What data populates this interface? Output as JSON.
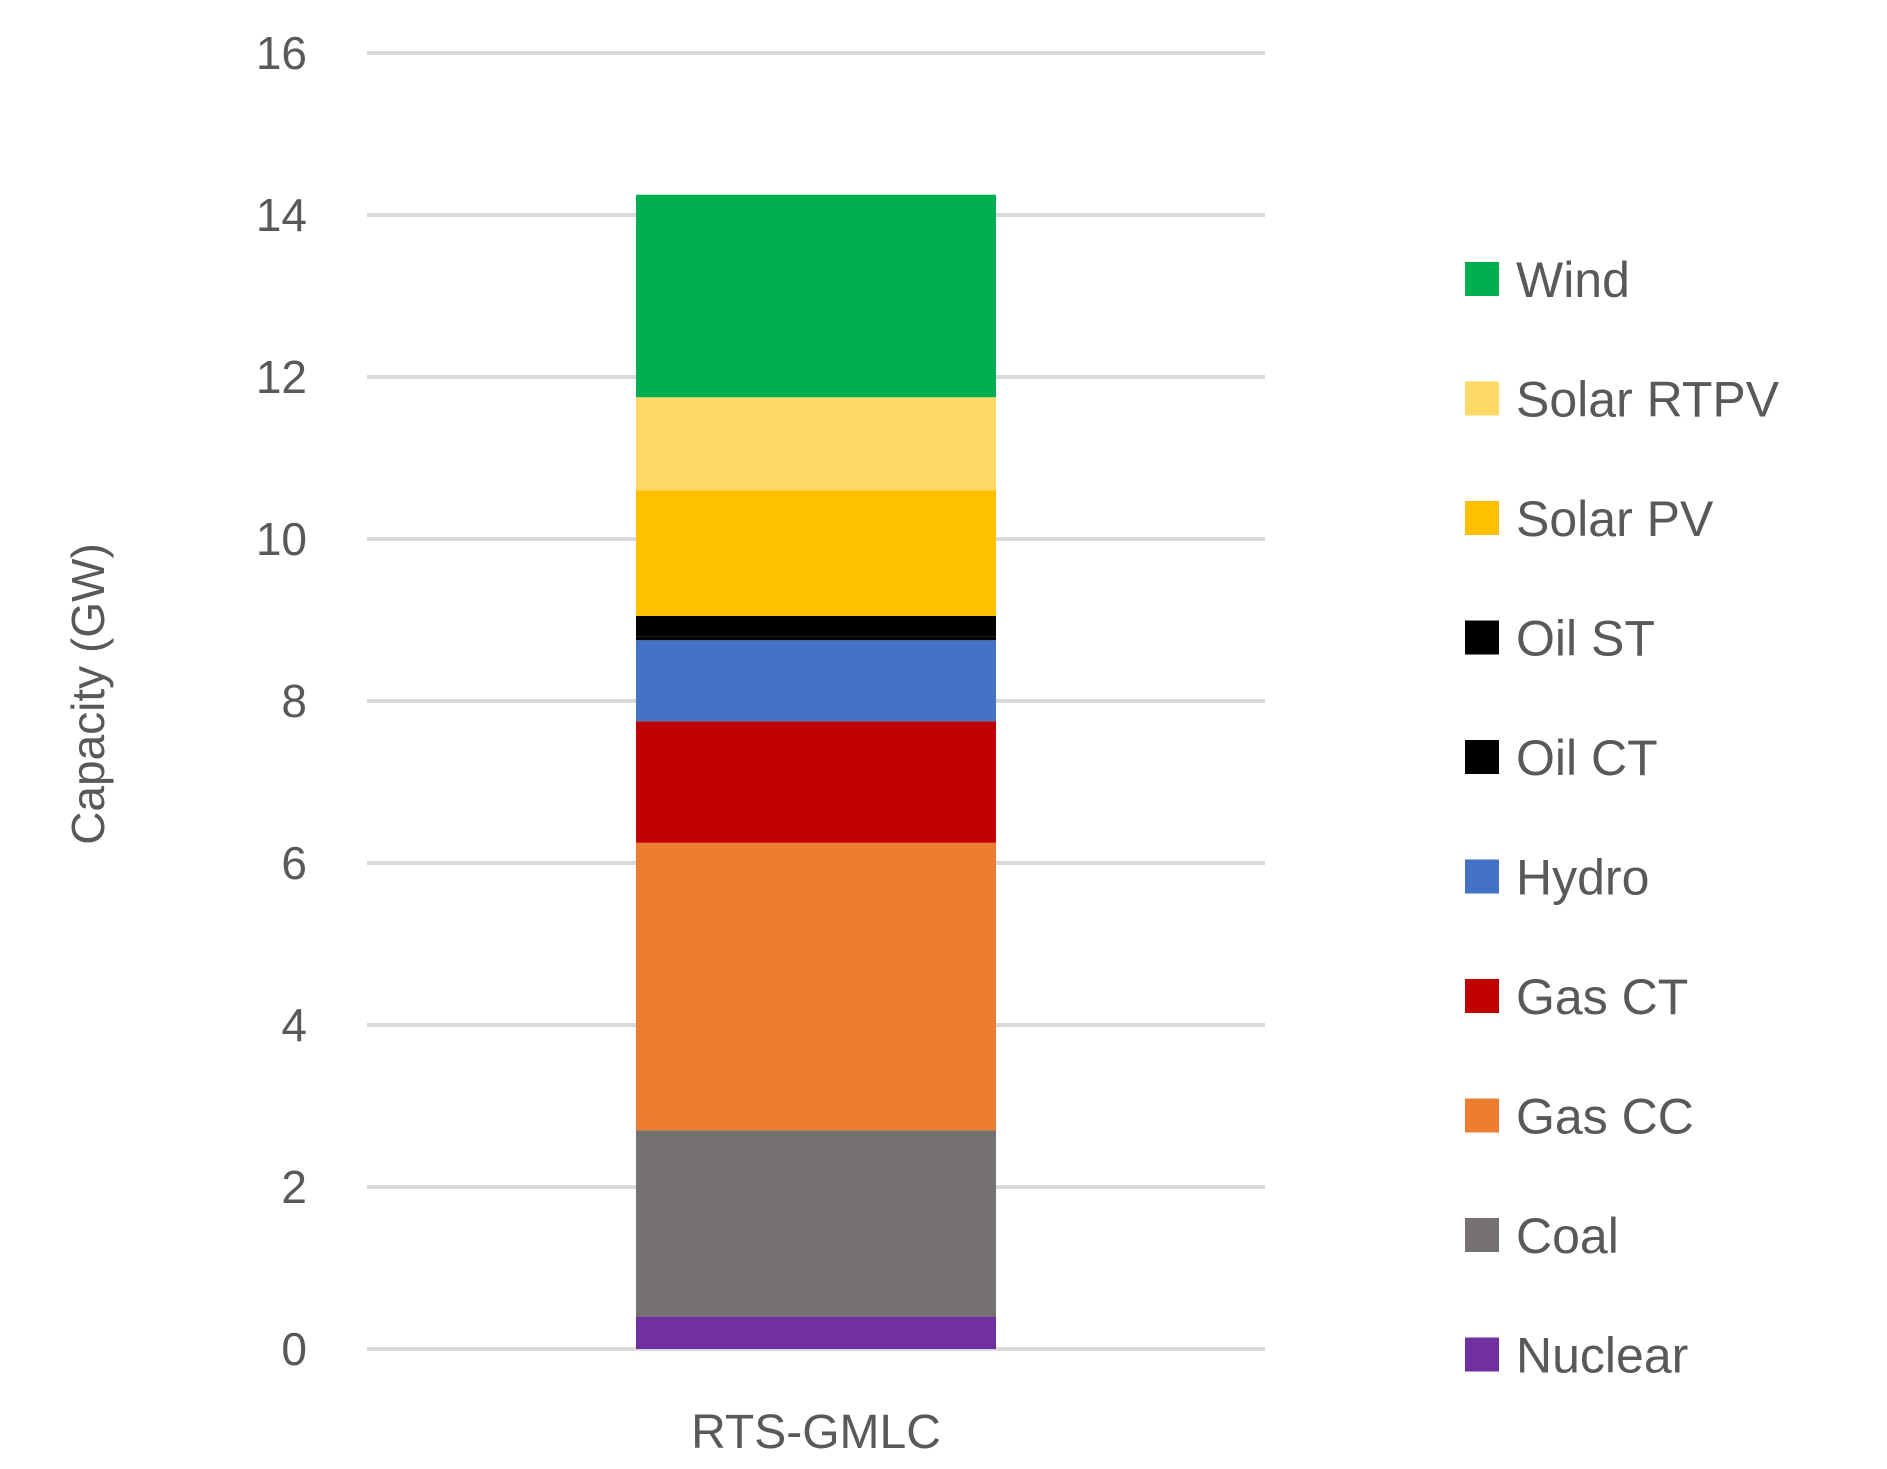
{
  "chart_data": {
    "type": "bar",
    "stacked": true,
    "categories": [
      "RTS-GMLC"
    ],
    "ylabel": "Capacity (GW)",
    "xlabel": "",
    "ylim": [
      0,
      16
    ],
    "yticks": [
      0,
      2,
      4,
      6,
      8,
      10,
      12,
      14,
      16
    ],
    "grid": true,
    "legend_position": "right",
    "series": [
      {
        "name": "Nuclear",
        "values": [
          0.4
        ],
        "color": "#7030A0"
      },
      {
        "name": "Coal",
        "values": [
          2.3
        ],
        "color": "#767171"
      },
      {
        "name": "Gas CC",
        "values": [
          3.55
        ],
        "color": "#ED7D31"
      },
      {
        "name": "Gas CT",
        "values": [
          1.5
        ],
        "color": "#C00000"
      },
      {
        "name": "Hydro",
        "values": [
          1.0
        ],
        "color": "#4472C4"
      },
      {
        "name": "Oil CT",
        "values": [
          0.05
        ],
        "color": "#000000"
      },
      {
        "name": "Oil ST",
        "values": [
          0.25
        ],
        "color": "#000000"
      },
      {
        "name": "Solar PV",
        "values": [
          1.55
        ],
        "color": "#FFC000"
      },
      {
        "name": "Solar RTPV",
        "values": [
          1.15
        ],
        "color": "#FFD966"
      },
      {
        "name": "Wind",
        "values": [
          2.5
        ],
        "color": "#00B050"
      }
    ]
  }
}
